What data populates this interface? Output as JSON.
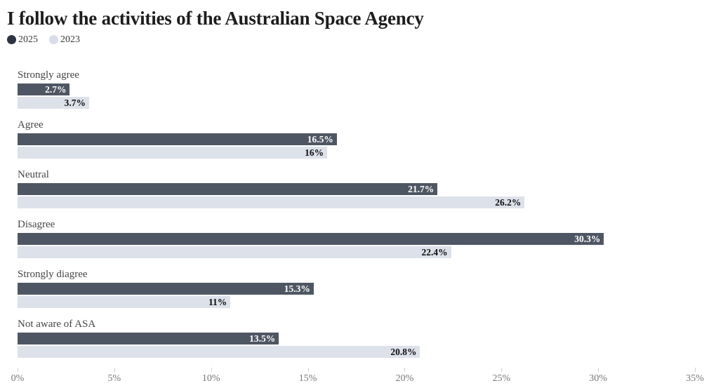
{
  "chart_data": {
    "type": "bar",
    "orientation": "horizontal",
    "title": "I follow the activities of the Australian Space Agency",
    "categories": [
      "Strongly agree",
      "Agree",
      "Neutral",
      "Disagree",
      "Strongly diagree",
      "Not aware of ASA"
    ],
    "series": [
      {
        "name": "2025",
        "color": "#4f5663",
        "legend_color": "#2c3343",
        "values": [
          2.7,
          16.5,
          21.7,
          30.3,
          15.3,
          13.5
        ],
        "labels": [
          "2.7%",
          "16.5%",
          "21.7%",
          "30.3%",
          "15.3%",
          "13.5%"
        ]
      },
      {
        "name": "2023",
        "color": "#dde1ea",
        "legend_color": "#d9dde9",
        "values": [
          3.7,
          16,
          26.2,
          22.4,
          11,
          20.8
        ],
        "labels": [
          "3.7%",
          "16%",
          "26.2%",
          "22.4%",
          "11%",
          "20.8%"
        ]
      }
    ],
    "xlim": [
      0,
      35
    ],
    "x_ticks": [
      "0%",
      "5%",
      "10%",
      "15%",
      "20%",
      "25%",
      "30%",
      "35%"
    ],
    "grid": false,
    "legend_position": "top-left",
    "value_labels": "inside-end"
  },
  "colors": {
    "title": "#1d1d1d",
    "category_label": "#454545",
    "axis_label": "#777777",
    "tick_mark": "#d0d0d0",
    "value_on_dark": "#ffffff",
    "value_on_light": "#0e0e0e",
    "background": "#ffffff"
  }
}
